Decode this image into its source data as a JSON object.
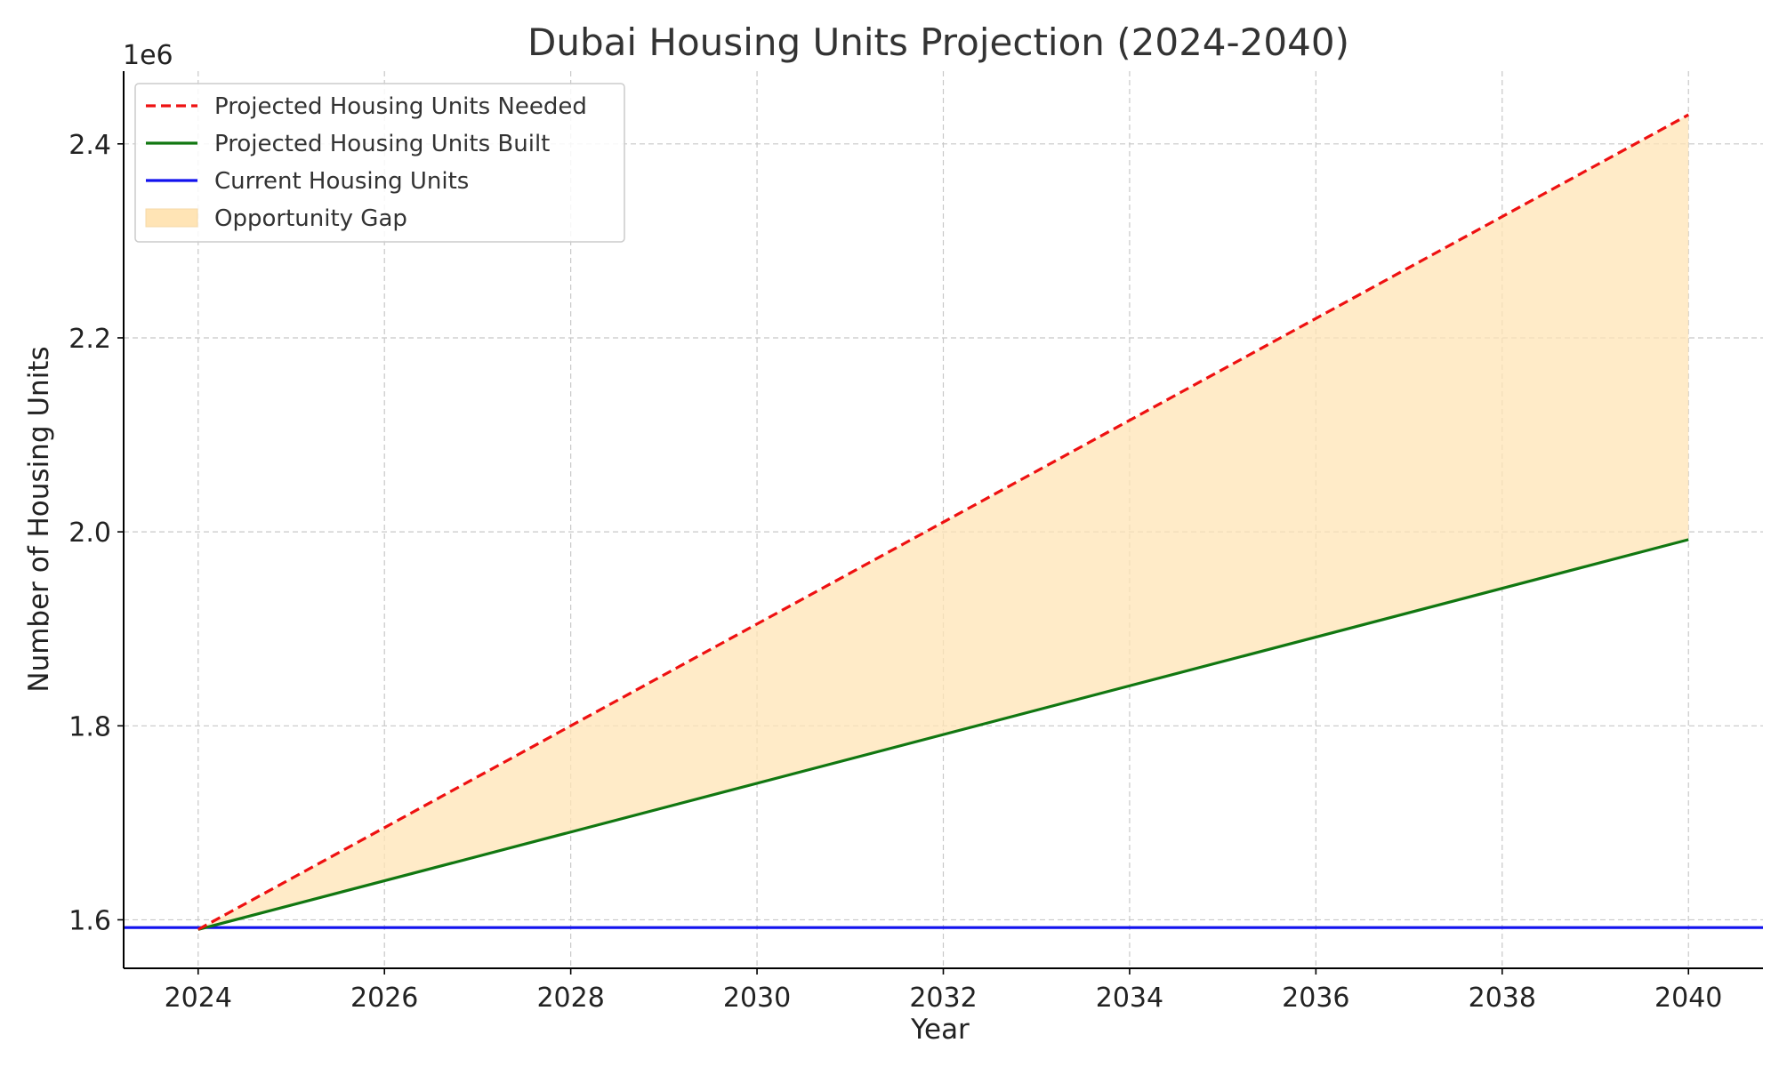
{
  "chart_data": {
    "type": "line",
    "title": "Dubai Housing Units Projection (2024-2040)",
    "xlabel": "Year",
    "ylabel": "Number of Housing Units",
    "y_offset_label": "1e6",
    "xlim": [
      2023.2,
      2040.8
    ],
    "ylim": [
      1.55,
      2.475
    ],
    "x_ticks": [
      2024,
      2026,
      2028,
      2030,
      2032,
      2034,
      2036,
      2038,
      2040
    ],
    "x_tick_labels": [
      "2024",
      "2026",
      "2028",
      "2030",
      "2032",
      "2034",
      "2036",
      "2038",
      "2040"
    ],
    "y_ticks": [
      1.6,
      1.8,
      2.0,
      2.2,
      2.4
    ],
    "y_tick_labels": [
      "1.6",
      "1.8",
      "2.0",
      "2.2",
      "2.4"
    ],
    "grid": true,
    "legend_position": "upper-left",
    "series": [
      {
        "name": "Projected Housing Units Needed",
        "style": "dashed",
        "color": "#ee1111",
        "x": [
          2024,
          2040
        ],
        "y": [
          1.59,
          2.43
        ]
      },
      {
        "name": "Projected Housing Units Built",
        "style": "solid",
        "color": "#117711",
        "x": [
          2024,
          2040
        ],
        "y": [
          1.59,
          1.992
        ]
      },
      {
        "name": "Current Housing Units",
        "style": "solid",
        "color": "#1111ee",
        "horizontal": true,
        "y_value": 1.592
      }
    ],
    "fill_between": {
      "name": "Opportunity Gap",
      "color": "#ffe4b5",
      "upper_series": "Projected Housing Units Needed",
      "lower_series": "Projected Housing Units Built"
    }
  }
}
